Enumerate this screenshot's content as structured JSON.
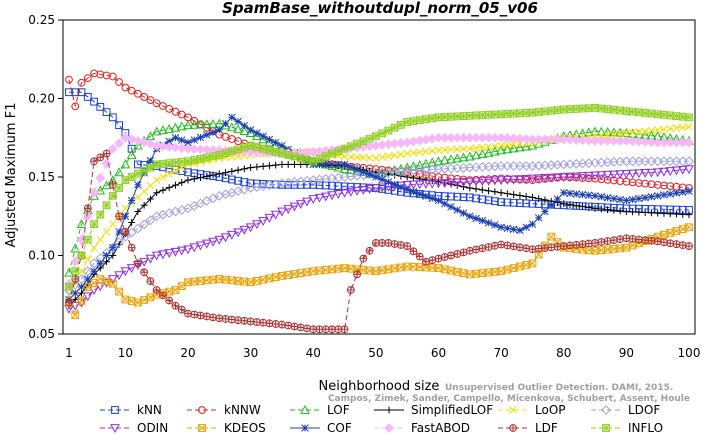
{
  "chart_data": {
    "type": "line",
    "title": "SpamBase_withoutdupl_norm_05_v06",
    "xlabel": "Neighborhood size",
    "ylabel": "Adjusted Maximum F1",
    "xlim": [
      1,
      100
    ],
    "ylim": [
      0.05,
      0.25
    ],
    "xticks": [
      "1",
      "10",
      "20",
      "30",
      "40",
      "50",
      "60",
      "70",
      "80",
      "90",
      "100"
    ],
    "yticks": [
      "0.05",
      "0.10",
      "0.15",
      "0.20",
      "0.25"
    ],
    "grid": false,
    "legend_position": "bottom",
    "watermark": {
      "line1": "Unsupervised Outlier Detection. DAMI, 2015.",
      "line2": "Campos, Zimek, Sander, Campello, Micenkova, Schubert, Assent, Houle"
    },
    "series": [
      {
        "name": "kNN",
        "color": "#1a3fd6",
        "marker": "square",
        "dash": "5,3",
        "points": [
          [
            1,
            0.204
          ],
          [
            3,
            0.204
          ],
          [
            5,
            0.198
          ],
          [
            8,
            0.188
          ],
          [
            10,
            0.178
          ],
          [
            12,
            0.158
          ],
          [
            15,
            0.157
          ],
          [
            20,
            0.153
          ],
          [
            25,
            0.15
          ],
          [
            30,
            0.146
          ],
          [
            35,
            0.145
          ],
          [
            40,
            0.145
          ],
          [
            45,
            0.144
          ],
          [
            50,
            0.143
          ],
          [
            55,
            0.14
          ],
          [
            60,
            0.138
          ],
          [
            65,
            0.137
          ],
          [
            70,
            0.134
          ],
          [
            80,
            0.132
          ],
          [
            90,
            0.13
          ],
          [
            100,
            0.129
          ]
        ]
      },
      {
        "name": "kNNW",
        "color": "#e32020",
        "marker": "circle",
        "dash": "5,3",
        "points": [
          [
            1,
            0.212
          ],
          [
            2,
            0.195
          ],
          [
            3,
            0.21
          ],
          [
            5,
            0.216
          ],
          [
            8,
            0.214
          ],
          [
            10,
            0.207
          ],
          [
            15,
            0.197
          ],
          [
            20,
            0.188
          ],
          [
            25,
            0.177
          ],
          [
            30,
            0.17
          ],
          [
            35,
            0.165
          ],
          [
            40,
            0.16
          ],
          [
            45,
            0.157
          ],
          [
            50,
            0.155
          ],
          [
            55,
            0.153
          ],
          [
            60,
            0.15
          ],
          [
            65,
            0.148
          ],
          [
            70,
            0.149
          ],
          [
            75,
            0.148
          ],
          [
            80,
            0.15
          ],
          [
            85,
            0.149
          ],
          [
            90,
            0.147
          ],
          [
            95,
            0.145
          ],
          [
            100,
            0.143
          ]
        ]
      },
      {
        "name": "LOF",
        "color": "#22bb22",
        "marker": "triangle-up",
        "dash": "5,3",
        "points": [
          [
            1,
            0.089
          ],
          [
            3,
            0.12
          ],
          [
            5,
            0.138
          ],
          [
            8,
            0.148
          ],
          [
            10,
            0.158
          ],
          [
            12,
            0.17
          ],
          [
            15,
            0.179
          ],
          [
            20,
            0.183
          ],
          [
            25,
            0.184
          ],
          [
            30,
            0.178
          ],
          [
            35,
            0.168
          ],
          [
            40,
            0.16
          ],
          [
            45,
            0.155
          ],
          [
            50,
            0.152
          ],
          [
            55,
            0.156
          ],
          [
            60,
            0.16
          ],
          [
            65,
            0.163
          ],
          [
            70,
            0.167
          ],
          [
            75,
            0.17
          ],
          [
            80,
            0.176
          ],
          [
            85,
            0.179
          ],
          [
            90,
            0.178
          ],
          [
            95,
            0.176
          ],
          [
            100,
            0.173
          ]
        ]
      },
      {
        "name": "SimplifiedLOF",
        "color": "#000000",
        "marker": "plus",
        "dash": "",
        "points": [
          [
            1,
            0.068
          ],
          [
            3,
            0.076
          ],
          [
            5,
            0.088
          ],
          [
            8,
            0.1
          ],
          [
            10,
            0.114
          ],
          [
            12,
            0.128
          ],
          [
            15,
            0.14
          ],
          [
            20,
            0.148
          ],
          [
            25,
            0.152
          ],
          [
            30,
            0.156
          ],
          [
            35,
            0.158
          ],
          [
            40,
            0.158
          ],
          [
            45,
            0.157
          ],
          [
            50,
            0.153
          ],
          [
            55,
            0.15
          ],
          [
            60,
            0.147
          ],
          [
            65,
            0.143
          ],
          [
            70,
            0.14
          ],
          [
            75,
            0.137
          ],
          [
            80,
            0.133
          ],
          [
            85,
            0.13
          ],
          [
            90,
            0.128
          ],
          [
            95,
            0.127
          ],
          [
            100,
            0.126
          ]
        ]
      },
      {
        "name": "LoOP",
        "color": "#f0e000",
        "marker": "cross",
        "dash": "5,3",
        "points": [
          [
            1,
            0.075
          ],
          [
            3,
            0.09
          ],
          [
            5,
            0.105
          ],
          [
            8,
            0.12
          ],
          [
            10,
            0.13
          ],
          [
            15,
            0.148
          ],
          [
            20,
            0.158
          ],
          [
            25,
            0.162
          ],
          [
            30,
            0.164
          ],
          [
            35,
            0.166
          ],
          [
            40,
            0.166
          ],
          [
            45,
            0.163
          ],
          [
            50,
            0.162
          ],
          [
            55,
            0.165
          ],
          [
            60,
            0.167
          ],
          [
            65,
            0.168
          ],
          [
            70,
            0.17
          ],
          [
            75,
            0.172
          ],
          [
            80,
            0.175
          ],
          [
            85,
            0.176
          ],
          [
            90,
            0.178
          ],
          [
            95,
            0.18
          ],
          [
            100,
            0.182
          ]
        ]
      },
      {
        "name": "LDOF",
        "color": "#a0a0e6",
        "marker": "diamond",
        "dash": "5,3",
        "points": [
          [
            1,
            0.078
          ],
          [
            3,
            0.085
          ],
          [
            5,
            0.095
          ],
          [
            8,
            0.105
          ],
          [
            10,
            0.112
          ],
          [
            15,
            0.125
          ],
          [
            20,
            0.13
          ],
          [
            25,
            0.138
          ],
          [
            30,
            0.143
          ],
          [
            35,
            0.146
          ],
          [
            40,
            0.148
          ],
          [
            45,
            0.15
          ],
          [
            50,
            0.152
          ],
          [
            55,
            0.154
          ],
          [
            60,
            0.155
          ],
          [
            65,
            0.156
          ],
          [
            70,
            0.157
          ],
          [
            75,
            0.157
          ],
          [
            80,
            0.158
          ],
          [
            85,
            0.159
          ],
          [
            90,
            0.16
          ],
          [
            95,
            0.16
          ],
          [
            100,
            0.16
          ]
        ]
      },
      {
        "name": "ODIN",
        "color": "#9030e0",
        "marker": "triangle-down",
        "dash": "5,3",
        "points": [
          [
            1,
            0.066
          ],
          [
            3,
            0.07
          ],
          [
            5,
            0.078
          ],
          [
            8,
            0.085
          ],
          [
            10,
            0.09
          ],
          [
            15,
            0.1
          ],
          [
            20,
            0.104
          ],
          [
            25,
            0.11
          ],
          [
            30,
            0.118
          ],
          [
            35,
            0.128
          ],
          [
            40,
            0.136
          ],
          [
            45,
            0.14
          ],
          [
            50,
            0.143
          ],
          [
            55,
            0.145
          ],
          [
            60,
            0.146
          ],
          [
            65,
            0.147
          ],
          [
            70,
            0.148
          ],
          [
            75,
            0.149
          ],
          [
            80,
            0.15
          ],
          [
            85,
            0.151
          ],
          [
            90,
            0.152
          ],
          [
            95,
            0.153
          ],
          [
            100,
            0.155
          ]
        ]
      },
      {
        "name": "KDEOS",
        "color": "#f0a000",
        "marker": "square-x",
        "dash": "5,3",
        "points": [
          [
            1,
            0.07
          ],
          [
            2,
            0.062
          ],
          [
            4,
            0.08
          ],
          [
            6,
            0.085
          ],
          [
            8,
            0.082
          ],
          [
            10,
            0.072
          ],
          [
            12,
            0.07
          ],
          [
            15,
            0.075
          ],
          [
            18,
            0.078
          ],
          [
            20,
            0.083
          ],
          [
            25,
            0.085
          ],
          [
            30,
            0.083
          ],
          [
            35,
            0.087
          ],
          [
            40,
            0.09
          ],
          [
            45,
            0.092
          ],
          [
            50,
            0.09
          ],
          [
            55,
            0.093
          ],
          [
            60,
            0.092
          ],
          [
            65,
            0.088
          ],
          [
            70,
            0.09
          ],
          [
            75,
            0.095
          ],
          [
            78,
            0.112
          ],
          [
            80,
            0.105
          ],
          [
            85,
            0.103
          ],
          [
            90,
            0.105
          ],
          [
            95,
            0.112
          ],
          [
            100,
            0.118
          ]
        ]
      },
      {
        "name": "COF",
        "color": "#1a3fb0",
        "marker": "star",
        "dash": "",
        "points": [
          [
            1,
            0.072
          ],
          [
            3,
            0.08
          ],
          [
            5,
            0.09
          ],
          [
            8,
            0.105
          ],
          [
            10,
            0.125
          ],
          [
            12,
            0.145
          ],
          [
            15,
            0.168
          ],
          [
            18,
            0.175
          ],
          [
            20,
            0.172
          ],
          [
            25,
            0.18
          ],
          [
            27,
            0.188
          ],
          [
            30,
            0.18
          ],
          [
            35,
            0.17
          ],
          [
            40,
            0.158
          ],
          [
            45,
            0.158
          ],
          [
            50,
            0.15
          ],
          [
            55,
            0.142
          ],
          [
            60,
            0.135
          ],
          [
            65,
            0.125
          ],
          [
            70,
            0.118
          ],
          [
            73,
            0.116
          ],
          [
            75,
            0.12
          ],
          [
            80,
            0.14
          ],
          [
            85,
            0.138
          ],
          [
            90,
            0.135
          ],
          [
            95,
            0.138
          ],
          [
            100,
            0.141
          ]
        ]
      },
      {
        "name": "FastABOD",
        "color": "#f6b8f6",
        "marker": "diamond-fill",
        "dash": "5,3",
        "points": [
          [
            1,
            0.082
          ],
          [
            3,
            0.11
          ],
          [
            5,
            0.14
          ],
          [
            8,
            0.168
          ],
          [
            10,
            0.175
          ],
          [
            15,
            0.17
          ],
          [
            20,
            0.168
          ],
          [
            25,
            0.167
          ],
          [
            30,
            0.166
          ],
          [
            35,
            0.165
          ],
          [
            40,
            0.166
          ],
          [
            45,
            0.168
          ],
          [
            50,
            0.17
          ],
          [
            55,
            0.172
          ],
          [
            60,
            0.175
          ],
          [
            65,
            0.175
          ],
          [
            70,
            0.175
          ],
          [
            75,
            0.174
          ],
          [
            80,
            0.174
          ],
          [
            85,
            0.173
          ],
          [
            90,
            0.173
          ],
          [
            95,
            0.172
          ],
          [
            100,
            0.172
          ]
        ]
      },
      {
        "name": "LDF",
        "color": "#b03030",
        "marker": "circle-plus",
        "dash": "5,3",
        "points": [
          [
            1,
            0.07
          ],
          [
            3,
            0.1
          ],
          [
            5,
            0.16
          ],
          [
            7,
            0.165
          ],
          [
            9,
            0.125
          ],
          [
            12,
            0.095
          ],
          [
            15,
            0.078
          ],
          [
            18,
            0.068
          ],
          [
            20,
            0.063
          ],
          [
            25,
            0.06
          ],
          [
            30,
            0.058
          ],
          [
            35,
            0.056
          ],
          [
            40,
            0.053
          ],
          [
            45,
            0.053
          ],
          [
            46,
            0.078
          ],
          [
            48,
            0.098
          ],
          [
            50,
            0.108
          ],
          [
            52,
            0.108
          ],
          [
            55,
            0.106
          ],
          [
            58,
            0.096
          ],
          [
            60,
            0.098
          ],
          [
            65,
            0.103
          ],
          [
            70,
            0.107
          ],
          [
            75,
            0.104
          ],
          [
            80,
            0.106
          ],
          [
            85,
            0.108
          ],
          [
            90,
            0.111
          ],
          [
            95,
            0.109
          ],
          [
            100,
            0.106
          ]
        ]
      },
      {
        "name": "INFLO",
        "color": "#90d020",
        "marker": "square-star",
        "dash": "5,3",
        "points": [
          [
            1,
            0.08
          ],
          [
            3,
            0.1
          ],
          [
            5,
            0.12
          ],
          [
            8,
            0.138
          ],
          [
            10,
            0.148
          ],
          [
            15,
            0.158
          ],
          [
            20,
            0.16
          ],
          [
            25,
            0.164
          ],
          [
            30,
            0.17
          ],
          [
            35,
            0.165
          ],
          [
            40,
            0.16
          ],
          [
            45,
            0.168
          ],
          [
            50,
            0.176
          ],
          [
            55,
            0.185
          ],
          [
            60,
            0.188
          ],
          [
            65,
            0.189
          ],
          [
            70,
            0.19
          ],
          [
            75,
            0.191
          ],
          [
            80,
            0.193
          ],
          [
            85,
            0.194
          ],
          [
            90,
            0.192
          ],
          [
            95,
            0.19
          ],
          [
            100,
            0.188
          ]
        ]
      }
    ]
  }
}
